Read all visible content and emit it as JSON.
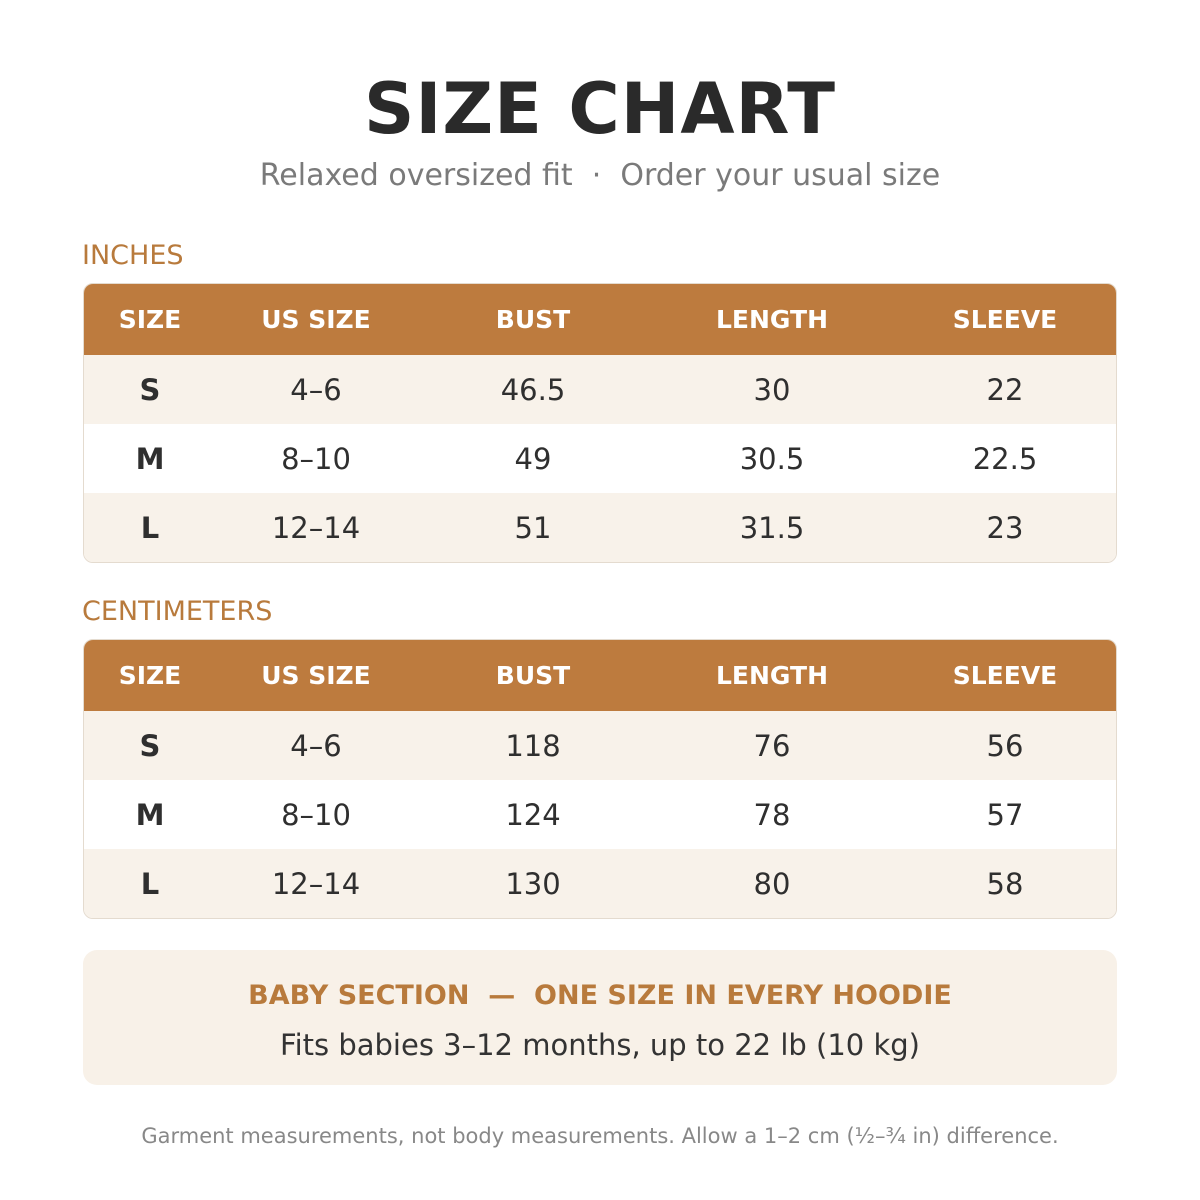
{
  "header": {
    "title": "SIZE CHART",
    "subtitle": "Relaxed oversized fit  ·  Order your usual size"
  },
  "tables": [
    {
      "label": "INCHES",
      "columns": [
        "SIZE",
        "US SIZE",
        "BUST",
        "LENGTH",
        "SLEEVE"
      ],
      "rows": [
        [
          "S",
          "4–6",
          "46.5",
          "30",
          "22"
        ],
        [
          "M",
          "8–10",
          "49",
          "30.5",
          "22.5"
        ],
        [
          "L",
          "12–14",
          "51",
          "31.5",
          "23"
        ]
      ]
    },
    {
      "label": "CENTIMETERS",
      "columns": [
        "SIZE",
        "US SIZE",
        "BUST",
        "LENGTH",
        "SLEEVE"
      ],
      "rows": [
        [
          "S",
          "4–6",
          "118",
          "76",
          "56"
        ],
        [
          "M",
          "8–10",
          "124",
          "78",
          "57"
        ],
        [
          "L",
          "12–14",
          "130",
          "80",
          "58"
        ]
      ]
    }
  ],
  "baby": {
    "heading": "BABY SECTION  —  ONE SIZE IN EVERY HOODIE",
    "text": "Fits babies 3–12 months, up to 22 lb (10 kg)"
  },
  "footnote": "Garment measurements, not body measurements. Allow a 1–2 cm (½–¾ in) difference."
}
